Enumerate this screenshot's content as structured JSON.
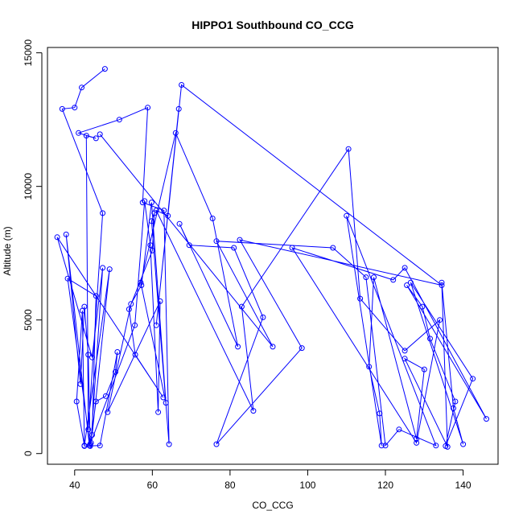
{
  "chart_data": {
    "type": "line",
    "title": "HIPPO1 Southbound CO_CCG",
    "xlabel": "CO_CCG",
    "ylabel": "Altitude (m)",
    "xlim": [
      33,
      149
    ],
    "ylim": [
      -400,
      15200
    ],
    "xticks": [
      40,
      60,
      80,
      100,
      120,
      140
    ],
    "yticks": [
      0,
      5000,
      10000,
      15000
    ],
    "grid": false,
    "legend": "none",
    "series_color": "#0000ff",
    "series": [
      {
        "points": [
          [
            47.8,
            14400
          ],
          [
            41.8,
            13700
          ],
          [
            40.0,
            12950
          ],
          [
            36.8,
            12900
          ],
          [
            47.2,
            9000
          ],
          [
            43.5,
            900
          ],
          [
            43.0,
            11900
          ],
          [
            45.5,
            11800
          ],
          [
            41.0,
            12000
          ],
          [
            51.5,
            12500
          ],
          [
            58.8,
            12950
          ],
          [
            57.5,
            9400
          ],
          [
            63.0,
            9100
          ],
          [
            64.3,
            350
          ],
          [
            59.8,
            8700
          ],
          [
            60.5,
            9000
          ],
          [
            60.0,
            7600
          ],
          [
            54.0,
            5400
          ],
          [
            55.6,
            3700
          ],
          [
            62.8,
            2100
          ],
          [
            35.5,
            8100
          ],
          [
            44.5,
            3600
          ],
          [
            47.2,
            6950
          ],
          [
            44.2,
            400
          ],
          [
            43.8,
            300
          ],
          [
            37.8,
            8200
          ],
          [
            41.5,
            2600
          ],
          [
            42.5,
            5500
          ],
          [
            43.5,
            3700
          ],
          [
            44.0,
            280
          ],
          [
            38.2,
            6550
          ],
          [
            45.5,
            5900
          ],
          [
            44.5,
            700
          ],
          [
            49.0,
            6900
          ],
          [
            42.5,
            300
          ],
          [
            40.5,
            1950
          ],
          [
            42.0,
            5350
          ],
          [
            42.5,
            280
          ],
          [
            46.5,
            300
          ],
          [
            51.0,
            3800
          ],
          [
            50.5,
            3050
          ],
          [
            48.0,
            2150
          ],
          [
            45.5,
            1950
          ],
          [
            44.0,
            350
          ],
          [
            55.5,
            4800
          ],
          [
            58.0,
            9450
          ],
          [
            59.5,
            7800
          ],
          [
            61.5,
            1550
          ],
          [
            62.0,
            5700
          ],
          [
            48.5,
            1550
          ],
          [
            54.5,
            5600
          ],
          [
            57.2,
            6300
          ],
          [
            59.8,
            9400
          ],
          [
            63.5,
            1900
          ],
          [
            57.0,
            6400
          ],
          [
            66.0,
            12000
          ],
          [
            75.5,
            8800
          ],
          [
            82.0,
            4000
          ],
          [
            67.0,
            8600
          ],
          [
            69.5,
            7800
          ],
          [
            81.0,
            7700
          ],
          [
            88.5,
            5100
          ],
          [
            76.5,
            350
          ],
          [
            98.5,
            3950
          ],
          [
            82.5,
            8000
          ],
          [
            134.5,
            6300
          ],
          [
            67.5,
            13800
          ],
          [
            61.0,
            4800
          ],
          [
            66.8,
            12900
          ],
          [
            64.0,
            8900
          ],
          [
            61.0,
            9100
          ],
          [
            86.0,
            1600
          ],
          [
            83.0,
            5500
          ],
          [
            110.5,
            11400
          ],
          [
            113.5,
            5800
          ],
          [
            125.0,
            3850
          ],
          [
            134.0,
            5000
          ],
          [
            128.0,
            400
          ],
          [
            96.0,
            7700
          ],
          [
            122.0,
            6500
          ],
          [
            125.0,
            6950
          ],
          [
            146.0,
            1300
          ],
          [
            125.5,
            6300
          ],
          [
            129.5,
            5500
          ],
          [
            131.5,
            4300
          ],
          [
            138.0,
            1950
          ],
          [
            135.5,
            280
          ],
          [
            142.5,
            2800
          ],
          [
            126.5,
            6400
          ],
          [
            140.0,
            350
          ],
          [
            137.5,
            1700
          ],
          [
            134.5,
            6400
          ],
          [
            136.0,
            250
          ],
          [
            125.0,
            3550
          ],
          [
            130.0,
            3150
          ],
          [
            128.0,
            550
          ],
          [
            117.0,
            6600
          ],
          [
            115.8,
            3250
          ],
          [
            118.5,
            1500
          ],
          [
            119.0,
            300
          ],
          [
            110.0,
            8900
          ],
          [
            133.0,
            300
          ],
          [
            123.5,
            900
          ],
          [
            120.0,
            300
          ],
          [
            115.0,
            6600
          ],
          [
            106.5,
            7700
          ],
          [
            76.5,
            7950
          ],
          [
            91.0,
            4000
          ],
          [
            46.5,
            11950
          ]
        ]
      }
    ]
  }
}
